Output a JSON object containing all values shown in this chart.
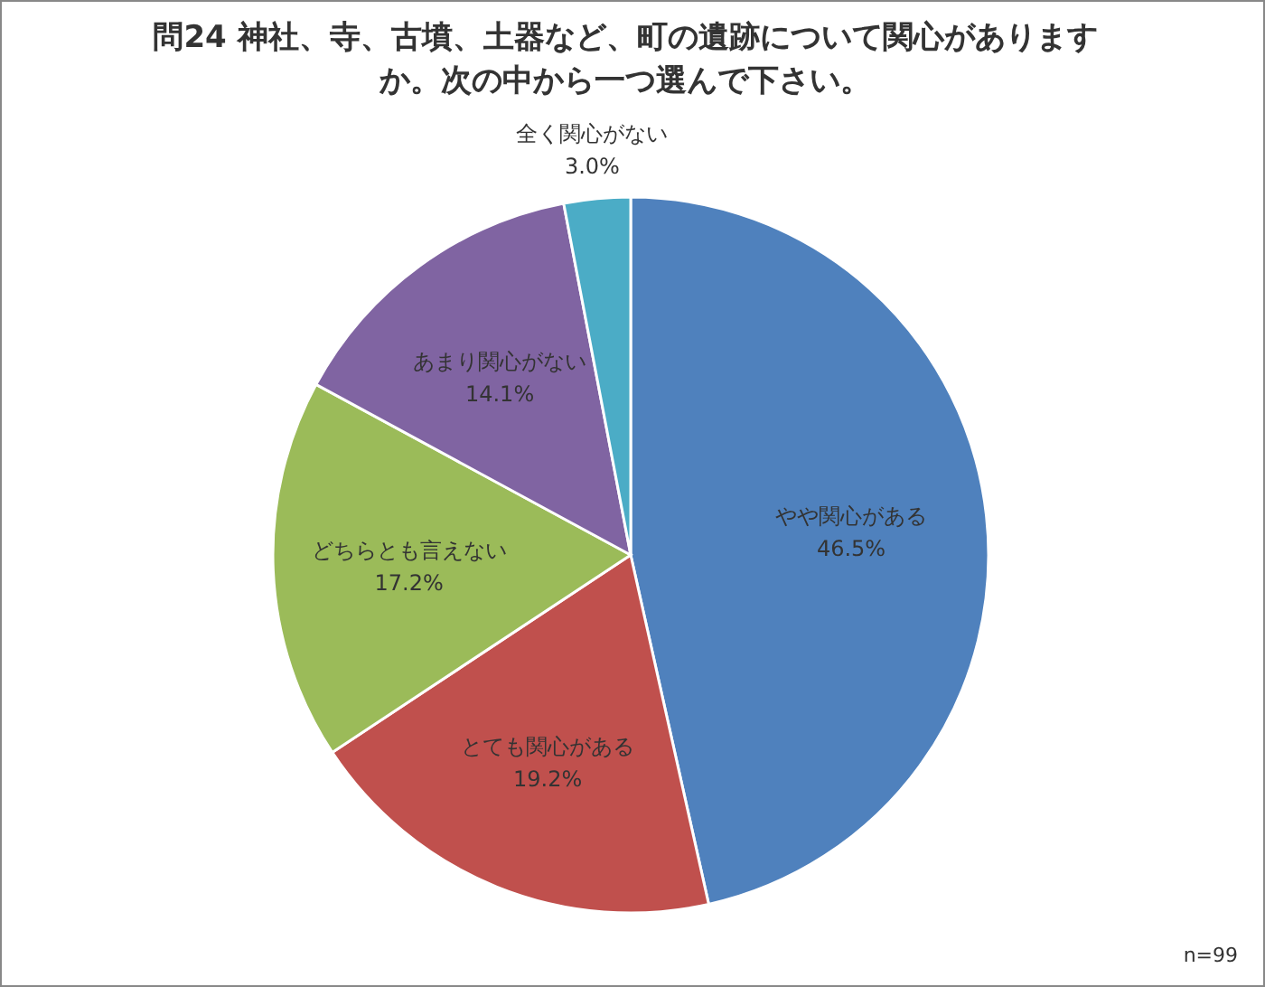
{
  "chart_data": {
    "type": "pie",
    "title": "問24 神社、寺、古墳、土器など、町の遺跡について関心がありますか。次の中から一つ選んで下さい。",
    "categories": [
      "やや関心がある",
      "とても関心がある",
      "どちらとも言えない",
      "あまり関心がない",
      "全く関心がない"
    ],
    "values": [
      46.5,
      19.2,
      17.2,
      14.1,
      3.0
    ],
    "colors": [
      "#4f81bd",
      "#c0504d",
      "#9bbb59",
      "#8064a2",
      "#4bacc6"
    ],
    "value_labels": [
      "46.5%",
      "19.2%",
      "17.2%",
      "14.1%",
      "3.0%"
    ],
    "annotations": [
      "n=99"
    ]
  }
}
